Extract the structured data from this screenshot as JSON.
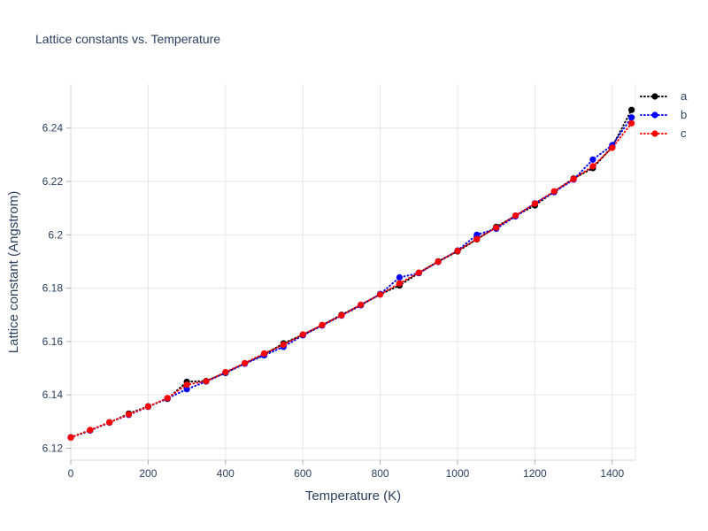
{
  "chart_data": {
    "type": "scatter",
    "title": "Lattice constants vs. Temperature",
    "xlabel": "Temperature (K)",
    "ylabel": "Lattice constant (Angstrom)",
    "x": [
      0,
      50,
      100,
      150,
      200,
      250,
      300,
      350,
      400,
      450,
      500,
      550,
      600,
      650,
      700,
      750,
      800,
      850,
      900,
      950,
      1000,
      1050,
      1100,
      1150,
      1200,
      1250,
      1300,
      1350,
      1400,
      1450
    ],
    "series": [
      {
        "name": "a",
        "color": "#000000",
        "values": [
          6.1241,
          6.1267,
          6.1296,
          6.133,
          6.1357,
          6.1385,
          6.1449,
          6.1452,
          6.1482,
          6.1518,
          6.155,
          6.1593,
          6.1625,
          6.1661,
          6.17,
          6.1737,
          6.1777,
          6.181,
          6.1857,
          6.19,
          6.1938,
          6.1983,
          6.203,
          6.2071,
          6.211,
          6.2162,
          6.2211,
          6.225,
          6.233,
          6.2468
        ]
      },
      {
        "name": "b",
        "color": "#0000ff",
        "values": [
          6.124,
          6.1266,
          6.1297,
          6.1325,
          6.1355,
          6.1387,
          6.1421,
          6.145,
          6.1483,
          6.1517,
          6.1548,
          6.158,
          6.1623,
          6.166,
          6.1697,
          6.1736,
          6.1778,
          6.184,
          6.1856,
          6.1898,
          6.1941,
          6.2,
          6.2023,
          6.2069,
          6.2118,
          6.216,
          6.2207,
          6.2282,
          6.2336,
          6.244
        ]
      },
      {
        "name": "c",
        "color": "#ff0000",
        "values": [
          6.124,
          6.1268,
          6.1297,
          6.1327,
          6.1356,
          6.1388,
          6.1438,
          6.1451,
          6.1485,
          6.1519,
          6.1555,
          6.1588,
          6.1626,
          6.1662,
          6.1698,
          6.1738,
          6.1776,
          6.1818,
          6.1858,
          6.1899,
          6.194,
          6.1984,
          6.2027,
          6.2072,
          6.2117,
          6.2163,
          6.2209,
          6.2257,
          6.2326,
          6.2418
        ]
      }
    ],
    "xlim": [
      0,
      1460
    ],
    "ylim": [
      6.1155,
      6.2565
    ],
    "xticks": [
      0,
      200,
      400,
      600,
      800,
      1000,
      1200,
      1400
    ],
    "xtick_labels": [
      "0",
      "200",
      "400",
      "600",
      "800",
      "1000",
      "1200",
      "1400"
    ],
    "yticks": [
      6.12,
      6.14,
      6.16,
      6.18,
      6.2,
      6.22,
      6.24
    ],
    "ytick_labels": [
      "6.12",
      "6.14",
      "6.16",
      "6.18",
      "6.2",
      "6.22",
      "6.24"
    ],
    "grid": true,
    "line_style": "dotted",
    "marker": "circle",
    "legend_position": "top-right",
    "colors": {
      "text": "#2a3f5f",
      "grid": "#e6e6e6",
      "axis": "#d4d4d4",
      "tick": "#a6adb8"
    }
  }
}
